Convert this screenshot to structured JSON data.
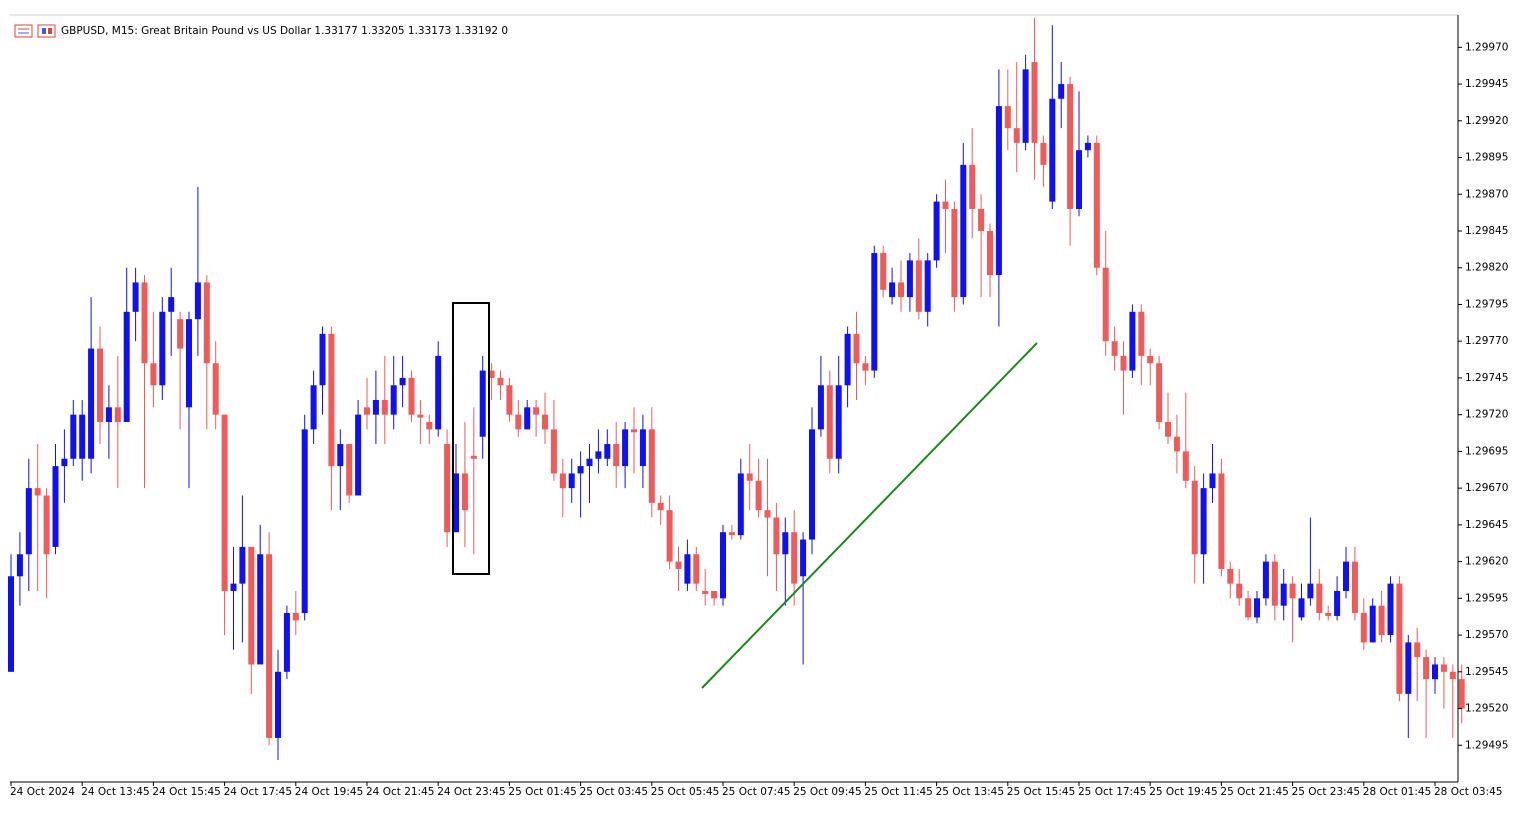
{
  "chart_data": {
    "type": "candlestick",
    "title": "GBPUSD, M15:  Great Britain Pound vs US Dollar  1.33177 1.33205 1.33173 1.33192  0",
    "up_color": "#1010f0",
    "down_color": "#ef5a5a",
    "ylim": [
      1.2947,
      1.29992
    ],
    "yticks": [
      {
        "value": 1.2997,
        "label": "1.29970"
      },
      1.29945,
      {
        "value": 1.2992,
        "label": "1.29920"
      },
      1.29895,
      {
        "value": 1.2987,
        "label": "1.29870"
      },
      1.29845,
      {
        "value": 1.2982,
        "label": "1.29820"
      },
      1.29795,
      {
        "value": 1.2977,
        "label": "1.29770"
      },
      1.29745,
      {
        "value": 1.2972,
        "label": "1.29720"
      },
      1.29695,
      {
        "value": 1.2967,
        "label": "1.29670"
      },
      1.29645,
      {
        "value": 1.2962,
        "label": "1.29620"
      },
      1.29595,
      {
        "value": 1.2957,
        "label": "1.29570"
      },
      1.29545,
      {
        "value": 1.2952,
        "label": "1.29520"
      },
      1.29495
    ],
    "categories": [
      "24 Oct 2024",
      null,
      null,
      null,
      null,
      null,
      null,
      null,
      "24 Oct 13:45",
      null,
      null,
      null,
      null,
      null,
      null,
      null,
      "24 Oct 15:45",
      null,
      null,
      null,
      null,
      null,
      null,
      null,
      "24 Oct 17:45",
      null,
      null,
      null,
      null,
      null,
      null,
      null,
      "24 Oct 19:45",
      null,
      null,
      null,
      null,
      null,
      null,
      null,
      "24 Oct 21:45",
      null,
      null,
      null,
      null,
      null,
      null,
      null,
      "24 Oct 23:45",
      null,
      null,
      null,
      null,
      null,
      null,
      null,
      "25 Oct 01:45",
      null,
      null,
      null,
      null,
      null,
      null,
      null,
      "25 Oct 03:45",
      null,
      null,
      null,
      null,
      null,
      null,
      null,
      "25 Oct 05:45",
      null,
      null,
      null,
      null,
      null,
      null,
      null,
      "25 Oct 07:45",
      null,
      null,
      null,
      null,
      null,
      null,
      null,
      "25 Oct 09:45",
      null,
      null,
      null,
      null,
      null,
      null,
      null,
      "25 Oct 11:45",
      null,
      null,
      null,
      null,
      null,
      null,
      null,
      "25 Oct 13:45",
      null,
      null,
      null,
      null,
      null,
      null,
      null,
      "25 Oct 15:45",
      null,
      null,
      null,
      null,
      null,
      null,
      null,
      "25 Oct 17:45",
      null,
      null,
      null,
      null,
      null,
      null,
      null,
      "25 Oct 19:45",
      null,
      null,
      null,
      null,
      null,
      null,
      null,
      "25 Oct 21:45",
      null,
      null,
      null,
      null,
      null,
      null,
      null,
      "25 Oct 23:45",
      null,
      null,
      null,
      null,
      null,
      null,
      null,
      "28 Oct 01:45",
      null,
      null,
      null,
      null,
      null,
      null,
      null,
      "28 Oct 03:45",
      null,
      null,
      null
    ],
    "candles": [
      [
        1.29545,
        1.29625,
        1.29545,
        1.2961
      ],
      [
        1.2961,
        1.2964,
        1.2959,
        1.29625
      ],
      [
        1.29625,
        1.2969,
        1.296,
        1.2967
      ],
      [
        1.2967,
        1.297,
        1.296,
        1.29665
      ],
      [
        1.29665,
        1.2967,
        1.29595,
        1.29625
      ],
      [
        1.2963,
        1.297,
        1.29625,
        1.29685
      ],
      [
        1.29685,
        1.2971,
        1.2966,
        1.2969
      ],
      [
        1.2969,
        1.2973,
        1.29685,
        1.2972
      ],
      [
        1.2969,
        1.2973,
        1.29675,
        1.2972
      ],
      [
        1.2969,
        1.298,
        1.2968,
        1.29765
      ],
      [
        1.29765,
        1.2978,
        1.297,
        1.29715
      ],
      [
        1.29715,
        1.2974,
        1.2969,
        1.29725
      ],
      [
        1.29725,
        1.2976,
        1.2967,
        1.29715
      ],
      [
        1.29715,
        1.2982,
        1.29715,
        1.2979
      ],
      [
        1.2979,
        1.2982,
        1.2977,
        1.2981
      ],
      [
        1.2981,
        1.29815,
        1.2967,
        1.29755
      ],
      [
        1.29755,
        1.2979,
        1.29725,
        1.2974
      ],
      [
        1.2974,
        1.298,
        1.2973,
        1.2979
      ],
      [
        1.2979,
        1.2982,
        1.2976,
        1.298
      ],
      [
        1.29785,
        1.2979,
        1.2971,
        1.29765
      ],
      [
        1.29725,
        1.2979,
        1.2967,
        1.29785
      ],
      [
        1.29785,
        1.29875,
        1.2976,
        1.2981
      ],
      [
        1.2981,
        1.29815,
        1.2971,
        1.29755
      ],
      [
        1.29755,
        1.2977,
        1.2971,
        1.2972
      ],
      [
        1.2972,
        1.2972,
        1.2957,
        1.296
      ],
      [
        1.296,
        1.2963,
        1.2956,
        1.29605
      ],
      [
        1.29605,
        1.29665,
        1.29565,
        1.2963
      ],
      [
        1.2963,
        1.2963,
        1.2953,
        1.2955
      ],
      [
        1.2955,
        1.29645,
        1.2955,
        1.29625
      ],
      [
        1.29625,
        1.2964,
        1.29495,
        1.295
      ],
      [
        1.295,
        1.2956,
        1.29485,
        1.29545
      ],
      [
        1.29545,
        1.2959,
        1.2954,
        1.29585
      ],
      [
        1.29585,
        1.296,
        1.2957,
        1.2958
      ],
      [
        1.29585,
        1.2972,
        1.2958,
        1.2971
      ],
      [
        1.2971,
        1.2975,
        1.297,
        1.2974
      ],
      [
        1.2974,
        1.2978,
        1.2972,
        1.29775
      ],
      [
        1.29775,
        1.2978,
        1.29655,
        1.29685
      ],
      [
        1.29685,
        1.2971,
        1.29655,
        1.297
      ],
      [
        1.297,
        1.297,
        1.2966,
        1.29665
      ],
      [
        1.29665,
        1.2973,
        1.29665,
        1.2972
      ],
      [
        1.29725,
        1.29745,
        1.2971,
        1.2972
      ],
      [
        1.2972,
        1.2975,
        1.297,
        1.2973
      ],
      [
        1.2973,
        1.2976,
        1.297,
        1.2972
      ],
      [
        1.2972,
        1.2976,
        1.2971,
        1.2974
      ],
      [
        1.2974,
        1.2976,
        1.29725,
        1.29745
      ],
      [
        1.29745,
        1.2975,
        1.29715,
        1.2972
      ],
      [
        1.2972,
        1.2973,
        1.297,
        1.29718
      ],
      [
        1.29715,
        1.2972,
        1.297,
        1.2971
      ],
      [
        1.2971,
        1.2977,
        1.29705,
        1.2976
      ],
      [
        1.297,
        1.2971,
        1.2963,
        1.2964
      ],
      [
        1.2964,
        1.297,
        1.2964,
        1.2968
      ],
      [
        1.2968,
        1.29715,
        1.2963,
        1.29655
      ],
      [
        1.29692,
        1.29725,
        1.29625,
        1.2969
      ],
      [
        1.29705,
        1.2976,
        1.2969,
        1.2975
      ],
      [
        1.2975,
        1.29755,
        1.2973,
        1.29745
      ],
      [
        1.29745,
        1.2975,
        1.2973,
        1.2974
      ],
      [
        1.2974,
        1.29745,
        1.29715,
        1.2972
      ],
      [
        1.2972,
        1.2973,
        1.29705,
        1.2971
      ],
      [
        1.2971,
        1.2973,
        1.2971,
        1.29725
      ],
      [
        1.29725,
        1.2973,
        1.29705,
        1.2972
      ],
      [
        1.2972,
        1.29735,
        1.297,
        1.2971
      ],
      [
        1.2971,
        1.2973,
        1.29675,
        1.2968
      ],
      [
        1.2968,
        1.2969,
        1.2965,
        1.2967
      ],
      [
        1.2967,
        1.2969,
        1.2966,
        1.2968
      ],
      [
        1.2968,
        1.29695,
        1.2965,
        1.29685
      ],
      [
        1.29685,
        1.297,
        1.2966,
        1.2969
      ],
      [
        1.2969,
        1.2971,
        1.2968,
        1.29695
      ],
      [
        1.2969,
        1.2971,
        1.29685,
        1.297
      ],
      [
        1.297,
        1.29715,
        1.2967,
        1.29685
      ],
      [
        1.29685,
        1.29715,
        1.2967,
        1.2971
      ],
      [
        1.2971,
        1.29725,
        1.2968,
        1.29708
      ],
      [
        1.29685,
        1.2972,
        1.2967,
        1.2971
      ],
      [
        1.2971,
        1.29725,
        1.2965,
        1.2966
      ],
      [
        1.2966,
        1.29665,
        1.29645,
        1.29655
      ],
      [
        1.29655,
        1.29665,
        1.29615,
        1.2962
      ],
      [
        1.2962,
        1.2963,
        1.296,
        1.29615
      ],
      [
        1.29605,
        1.29635,
        1.296,
        1.29625
      ],
      [
        1.29625,
        1.2963,
        1.296,
        1.29605
      ],
      [
        1.296,
        1.29615,
        1.2959,
        1.29598
      ],
      [
        1.296,
        1.296,
        1.2959,
        1.29595
      ],
      [
        1.29595,
        1.29645,
        1.2959,
        1.2964
      ],
      [
        1.2964,
        1.29645,
        1.29635,
        1.29638
      ],
      [
        1.29638,
        1.2969,
        1.29635,
        1.2968
      ],
      [
        1.2968,
        1.297,
        1.29655,
        1.29675
      ],
      [
        1.29675,
        1.2969,
        1.2965,
        1.29655
      ],
      [
        1.29655,
        1.2969,
        1.2961,
        1.2965
      ],
      [
        1.2965,
        1.2966,
        1.296,
        1.29625
      ],
      [
        1.29625,
        1.2965,
        1.2959,
        1.2964
      ],
      [
        1.2964,
        1.29655,
        1.2959,
        1.29605
      ],
      [
        1.2961,
        1.2964,
        1.2955,
        1.29635
      ],
      [
        1.29635,
        1.29725,
        1.29625,
        1.2971
      ],
      [
        1.2971,
        1.2976,
        1.29705,
        1.2974
      ],
      [
        1.2974,
        1.2975,
        1.2968,
        1.2969
      ],
      [
        1.2969,
        1.2976,
        1.2968,
        1.2974
      ],
      [
        1.2974,
        1.2978,
        1.29725,
        1.29775
      ],
      [
        1.29775,
        1.2979,
        1.2973,
        1.29755
      ],
      [
        1.29755,
        1.2976,
        1.2974,
        1.2975
      ],
      [
        1.2975,
        1.29835,
        1.29745,
        1.2983
      ],
      [
        1.2983,
        1.29835,
        1.298,
        1.29805
      ],
      [
        1.298,
        1.2982,
        1.29795,
        1.2981
      ],
      [
        1.2981,
        1.29825,
        1.2979,
        1.298
      ],
      [
        1.298,
        1.2983,
        1.2979,
        1.29825
      ],
      [
        1.29825,
        1.2984,
        1.29785,
        1.2979
      ],
      [
        1.2979,
        1.2983,
        1.2978,
        1.29825
      ],
      [
        1.29825,
        1.2987,
        1.2982,
        1.29865
      ],
      [
        1.29865,
        1.2988,
        1.2983,
        1.2986
      ],
      [
        1.2986,
        1.29865,
        1.2979,
        1.298
      ],
      [
        1.298,
        1.29905,
        1.29795,
        1.2989
      ],
      [
        1.2989,
        1.29915,
        1.2984,
        1.2986
      ],
      [
        1.2986,
        1.2987,
        1.298,
        1.29845
      ],
      [
        1.29845,
        1.2985,
        1.298,
        1.29815
      ],
      [
        1.29815,
        1.29955,
        1.2978,
        1.2993
      ],
      [
        1.2993,
        1.29955,
        1.299,
        1.29915
      ],
      [
        1.29915,
        1.2996,
        1.29885,
        1.29905
      ],
      [
        1.29905,
        1.29965,
        1.299,
        1.29955
      ],
      [
        1.2996,
        1.2999,
        1.2988,
        1.29905
      ],
      [
        1.29905,
        1.2991,
        1.29875,
        1.2989
      ],
      [
        1.29865,
        1.29985,
        1.2986,
        1.29935
      ],
      [
        1.29935,
        1.2996,
        1.29915,
        1.29945
      ],
      [
        1.29945,
        1.2995,
        1.29835,
        1.2986
      ],
      [
        1.2986,
        1.2994,
        1.29855,
        1.299
      ],
      [
        1.299,
        1.2991,
        1.29895,
        1.29905
      ],
      [
        1.29905,
        1.2991,
        1.29815,
        1.2982
      ],
      [
        1.2982,
        1.29845,
        1.2976,
        1.2977
      ],
      [
        1.2977,
        1.2978,
        1.2975,
        1.2976
      ],
      [
        1.2976,
        1.2977,
        1.2972,
        1.2975
      ],
      [
        1.2975,
        1.29795,
        1.29745,
        1.2979
      ],
      [
        1.2979,
        1.29795,
        1.2974,
        1.2976
      ],
      [
        1.2976,
        1.29765,
        1.2974,
        1.29755
      ],
      [
        1.29755,
        1.2976,
        1.2971,
        1.29715
      ],
      [
        1.29715,
        1.29735,
        1.297,
        1.29705
      ],
      [
        1.29705,
        1.2972,
        1.2968,
        1.29695
      ],
      [
        1.29695,
        1.29735,
        1.2967,
        1.29675
      ],
      [
        1.29675,
        1.29685,
        1.29605,
        1.29625
      ],
      [
        1.29625,
        1.2968,
        1.29605,
        1.2967
      ],
      [
        1.2967,
        1.297,
        1.2966,
        1.2968
      ],
      [
        1.2968,
        1.2969,
        1.2961,
        1.29615
      ],
      [
        1.29615,
        1.2962,
        1.29595,
        1.29605
      ],
      [
        1.29605,
        1.29615,
        1.2959,
        1.29595
      ],
      [
        1.29595,
        1.296,
        1.2958,
        1.29582
      ],
      [
        1.29582,
        1.296,
        1.29578,
        1.29595
      ],
      [
        1.29595,
        1.29625,
        1.2959,
        1.2962
      ],
      [
        1.2962,
        1.29625,
        1.2958,
        1.2959
      ],
      [
        1.2959,
        1.29615,
        1.2958,
        1.29605
      ],
      [
        1.29605,
        1.2961,
        1.29565,
        1.29595
      ],
      [
        1.29582,
        1.29605,
        1.2958,
        1.29595
      ],
      [
        1.29595,
        1.2965,
        1.2959,
        1.29605
      ],
      [
        1.29605,
        1.29615,
        1.2958,
        1.29585
      ],
      [
        1.29585,
        1.2959,
        1.2958,
        1.29583
      ],
      [
        1.29583,
        1.2961,
        1.2958,
        1.296
      ],
      [
        1.296,
        1.2963,
        1.29595,
        1.2962
      ],
      [
        1.2962,
        1.2963,
        1.2958,
        1.29585
      ],
      [
        1.29585,
        1.29595,
        1.2956,
        1.29565
      ],
      [
        1.29565,
        1.29595,
        1.29565,
        1.2959
      ],
      [
        1.2959,
        1.296,
        1.29565,
        1.2957
      ],
      [
        1.2957,
        1.2961,
        1.29565,
        1.29605
      ],
      [
        1.29605,
        1.2961,
        1.29525,
        1.2953
      ],
      [
        1.2953,
        1.2957,
        1.295,
        1.29565
      ],
      [
        1.29565,
        1.29575,
        1.29525,
        1.29555
      ],
      [
        1.29555,
        1.2956,
        1.295,
        1.2954
      ],
      [
        1.2954,
        1.29555,
        1.2953,
        1.2955
      ],
      [
        1.2955,
        1.29555,
        1.2952,
        1.29545
      ],
      [
        1.29545,
        1.2955,
        1.295,
        1.2954
      ],
      [
        1.2954,
        1.2955,
        1.2951,
        1.2952
      ]
    ]
  }
}
